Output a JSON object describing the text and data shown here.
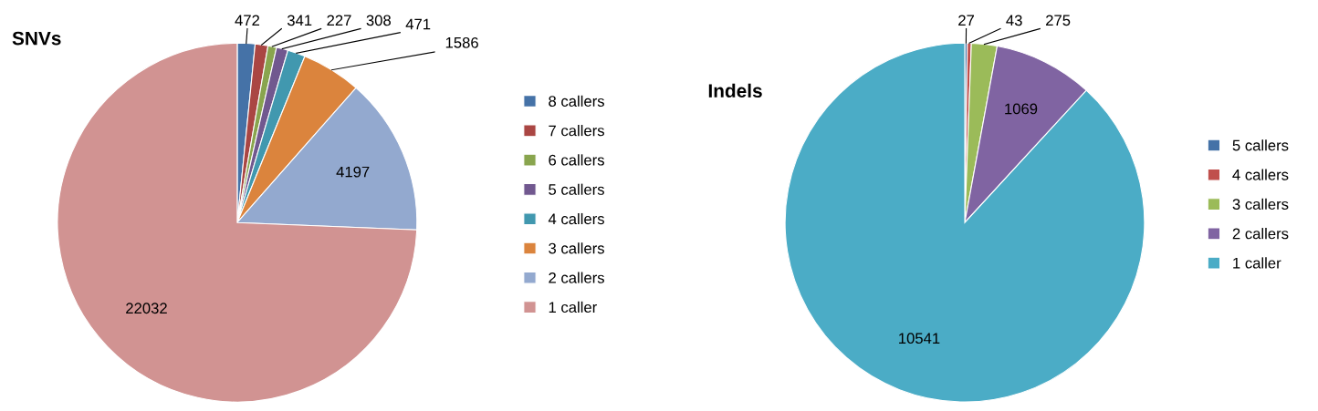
{
  "chart_data": [
    {
      "type": "pie",
      "title": "SNVs",
      "categories": [
        "8 callers",
        "7 callers",
        "6 callers",
        "5 callers",
        "4 callers",
        "3 callers",
        "2 callers",
        "1 caller"
      ],
      "values": [
        472,
        341,
        227,
        308,
        471,
        1586,
        4197,
        22032
      ],
      "colors": [
        "#4572a7",
        "#aa4643",
        "#89a54e",
        "#71588f",
        "#4198af",
        "#db843d",
        "#93a9cf",
        "#d19392"
      ],
      "data_labels": true,
      "legend": "right"
    },
    {
      "type": "pie",
      "title": "Indels",
      "categories": [
        "5 callers",
        "4 callers",
        "3 callers",
        "2 callers",
        "1 caller"
      ],
      "values": [
        27,
        43,
        275,
        1069,
        10541
      ],
      "colors": [
        "#4572a7",
        "#c0504d",
        "#9bbb59",
        "#8064a2",
        "#4bacc6"
      ],
      "data_labels": true,
      "legend": "right"
    }
  ]
}
